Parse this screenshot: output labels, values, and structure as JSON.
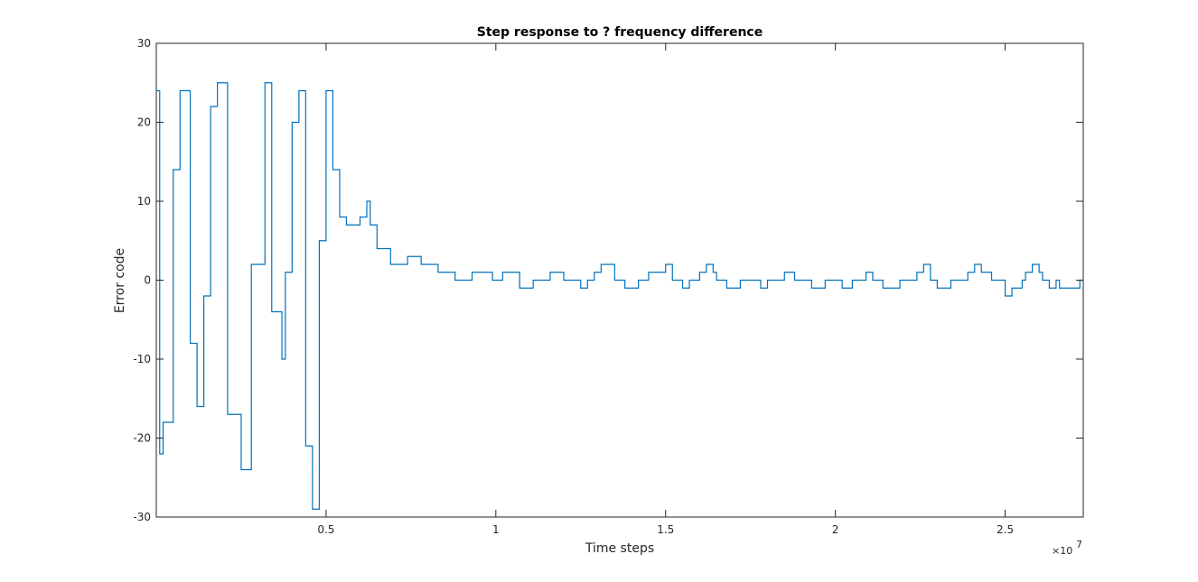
{
  "chart_data": {
    "type": "line",
    "title": "Step response to ? frequency difference",
    "xlabel": "Time steps",
    "ylabel": "Error code",
    "x_exponent_label": "×10",
    "x_exponent_power": "7",
    "xlim": [
      0.0,
      2.73
    ],
    "ylim": [
      -30,
      30
    ],
    "x_ticks": [
      0.5,
      1,
      1.5,
      2,
      2.5
    ],
    "x_tick_labels": [
      "0.5",
      "1",
      "1.5",
      "2",
      "2.5"
    ],
    "y_ticks": [
      -30,
      -20,
      -10,
      0,
      10,
      20,
      30
    ],
    "y_tick_labels": [
      "-30",
      "-20",
      "-10",
      "0",
      "10",
      "20",
      "30"
    ],
    "grid": false,
    "line_color": "#0072BD",
    "step_style": "post",
    "series": [
      {
        "x": [
          0.0,
          0.01,
          0.02,
          0.05,
          0.07,
          0.1,
          0.12,
          0.14,
          0.16,
          0.18,
          0.21,
          0.25,
          0.28,
          0.32,
          0.34,
          0.37,
          0.38,
          0.4,
          0.42,
          0.44,
          0.46,
          0.48,
          0.5,
          0.52,
          0.54,
          0.56,
          0.6,
          0.62,
          0.63,
          0.65,
          0.69,
          0.74,
          0.78,
          0.83,
          0.88,
          0.93,
          0.99,
          1.02,
          1.07,
          1.11,
          1.16,
          1.2,
          1.25,
          1.27,
          1.29,
          1.31,
          1.35,
          1.38,
          1.42,
          1.45,
          1.5,
          1.52,
          1.55,
          1.57,
          1.6,
          1.62,
          1.64,
          1.65,
          1.68,
          1.72,
          1.78,
          1.8,
          1.85,
          1.88,
          1.93,
          1.97,
          2.02,
          2.05,
          2.09,
          2.11,
          2.14,
          2.19,
          2.24,
          2.26,
          2.28,
          2.3,
          2.34,
          2.39,
          2.41,
          2.43,
          2.46,
          2.5,
          2.52,
          2.55,
          2.56,
          2.58,
          2.6,
          2.61,
          2.63,
          2.65,
          2.66,
          2.72
        ],
        "y": [
          24,
          -22,
          -18,
          14,
          24,
          -8,
          -16,
          -2,
          22,
          25,
          -17,
          -24,
          2,
          25,
          -4,
          -10,
          1,
          20,
          24,
          -21,
          -29,
          5,
          24,
          14,
          8,
          7,
          8,
          10,
          7,
          4,
          2,
          3,
          2,
          1,
          0,
          1,
          0,
          1,
          -1,
          0,
          1,
          0,
          -1,
          0,
          1,
          2,
          0,
          -1,
          0,
          1,
          2,
          0,
          -1,
          0,
          1,
          2,
          1,
          0,
          -1,
          0,
          -1,
          0,
          1,
          0,
          -1,
          0,
          -1,
          0,
          1,
          0,
          -1,
          0,
          1,
          2,
          0,
          -1,
          0,
          1,
          2,
          1,
          0,
          -2,
          -1,
          0,
          1,
          2,
          1,
          0,
          -1,
          0,
          -1,
          0
        ]
      }
    ]
  }
}
